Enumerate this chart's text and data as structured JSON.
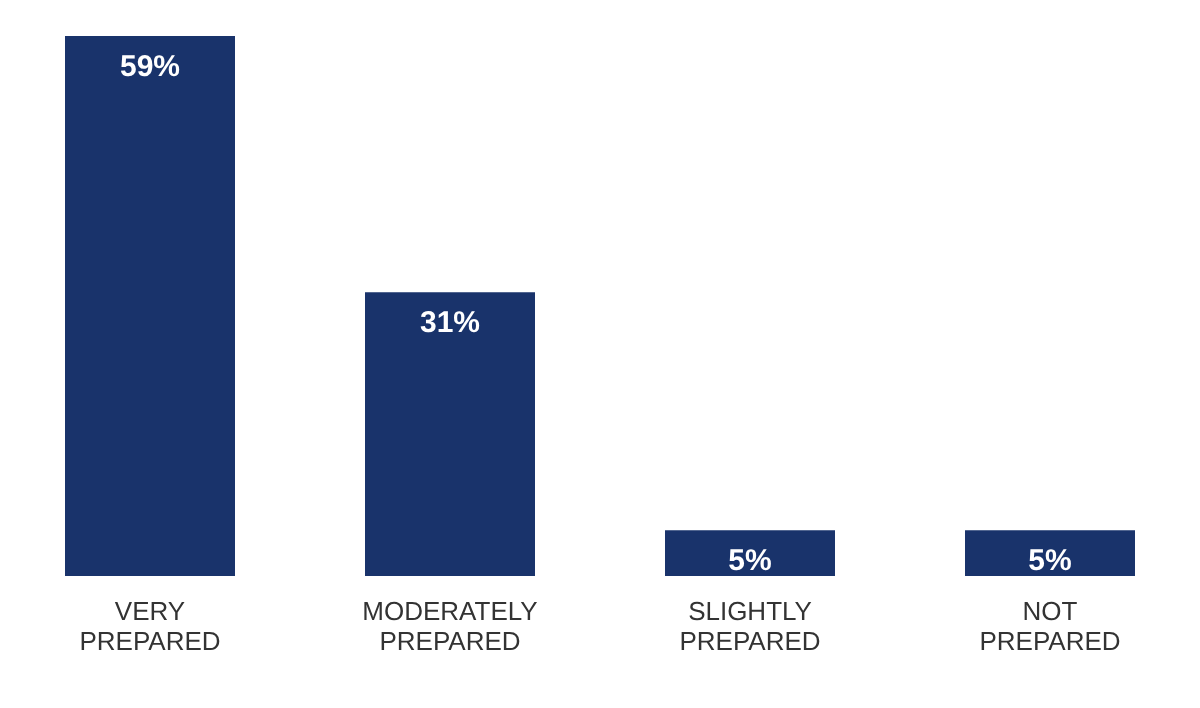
{
  "chart_data": {
    "type": "bar",
    "categories": [
      "VERY PREPARED",
      "MODERATELY PREPARED",
      "SLIGHTLY PREPARED",
      "NOT PREPARED"
    ],
    "values": [
      59,
      31,
      5,
      5
    ],
    "value_labels": [
      "59%",
      "31%",
      "5%",
      "5%"
    ],
    "color": "#19336b"
  }
}
